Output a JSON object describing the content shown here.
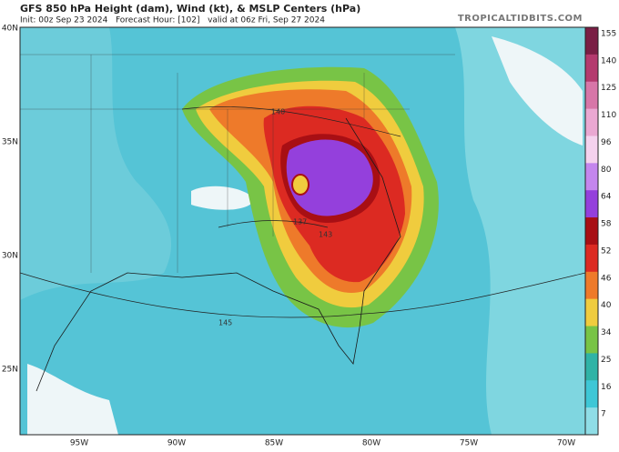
{
  "header": {
    "title": "GFS 850 hPa Height (dam), Wind (kt), & MSLP Centers (hPa)",
    "subtitle": "Init: 00z Sep 23 2024   Forecast Hour: [102]   valid at 06z Fri, Sep 27 2024",
    "site": "TROPICALTIDBITS.COM"
  },
  "map": {
    "lat_labels": [
      "40N",
      "35N",
      "30N",
      "25N"
    ],
    "lon_labels": [
      "95W",
      "90W",
      "85W",
      "80W",
      "75W",
      "70W"
    ],
    "contour_labels": [
      "140",
      "137",
      "143",
      "145"
    ]
  },
  "colorbar": {
    "ticks": [
      155,
      140,
      125,
      110,
      96,
      80,
      64,
      58,
      52,
      46,
      40,
      34,
      25,
      16,
      7
    ],
    "colors": [
      "#7a1f45",
      "#b43a6e",
      "#d776a8",
      "#eaa8d2",
      "#f5d2ee",
      "#c486ee",
      "#9440dc",
      "#a80f14",
      "#dc2a22",
      "#ee7a2a",
      "#f0cc3e",
      "#78c446",
      "#2fb3a6",
      "#3ec7d6",
      "#8fdde6"
    ]
  }
}
